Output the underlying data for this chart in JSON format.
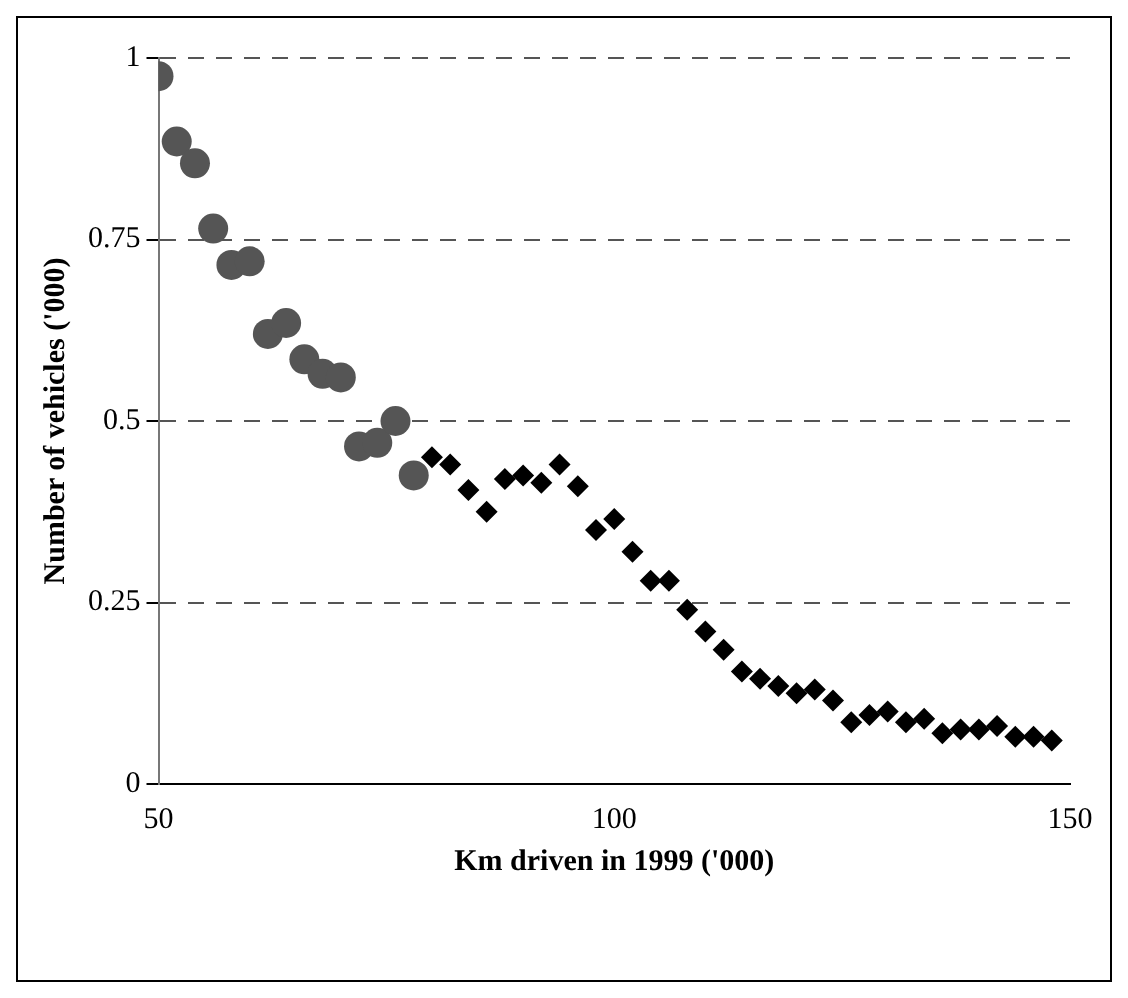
{
  "chart_data": {
    "type": "scatter",
    "xlabel": "Km driven in 1999 ('000)",
    "ylabel": "Number of vehicles ('000)",
    "xlim": [
      50,
      150
    ],
    "xticks": [
      50,
      100,
      150
    ],
    "ylim": [
      0,
      1
    ],
    "yticks": [
      0,
      0.25,
      0.5,
      0.75,
      1
    ],
    "grid": "y",
    "legend": false,
    "series": [
      {
        "color": "#555555",
        "marker": "circle",
        "x": [
          50,
          52,
          54,
          56,
          58,
          60,
          62,
          64,
          66,
          68,
          70,
          72,
          74,
          76,
          78
        ],
        "values": [
          0.975,
          0.885,
          0.855,
          0.765,
          0.715,
          0.72,
          0.62,
          0.635,
          0.585,
          0.565,
          0.56,
          0.465,
          0.47,
          0.5,
          0.425
        ]
      },
      {
        "color": "#000000",
        "marker": "diamond",
        "x": [
          80,
          82,
          84,
          86,
          88,
          90,
          92,
          94,
          96,
          98,
          100,
          102,
          104,
          106,
          108,
          110,
          112,
          114,
          116,
          118,
          120,
          122,
          124,
          126,
          128,
          130,
          132,
          134,
          136,
          138,
          140,
          142,
          144,
          146,
          148
        ],
        "values": [
          0.45,
          0.44,
          0.405,
          0.375,
          0.42,
          0.425,
          0.415,
          0.44,
          0.41,
          0.35,
          0.365,
          0.32,
          0.28,
          0.28,
          0.24,
          0.21,
          0.185,
          0.155,
          0.145,
          0.135,
          0.125,
          0.13,
          0.115,
          0.085,
          0.095,
          0.1,
          0.085,
          0.09,
          0.07,
          0.075,
          0.075,
          0.08,
          0.065,
          0.065,
          0.06
        ]
      }
    ]
  }
}
